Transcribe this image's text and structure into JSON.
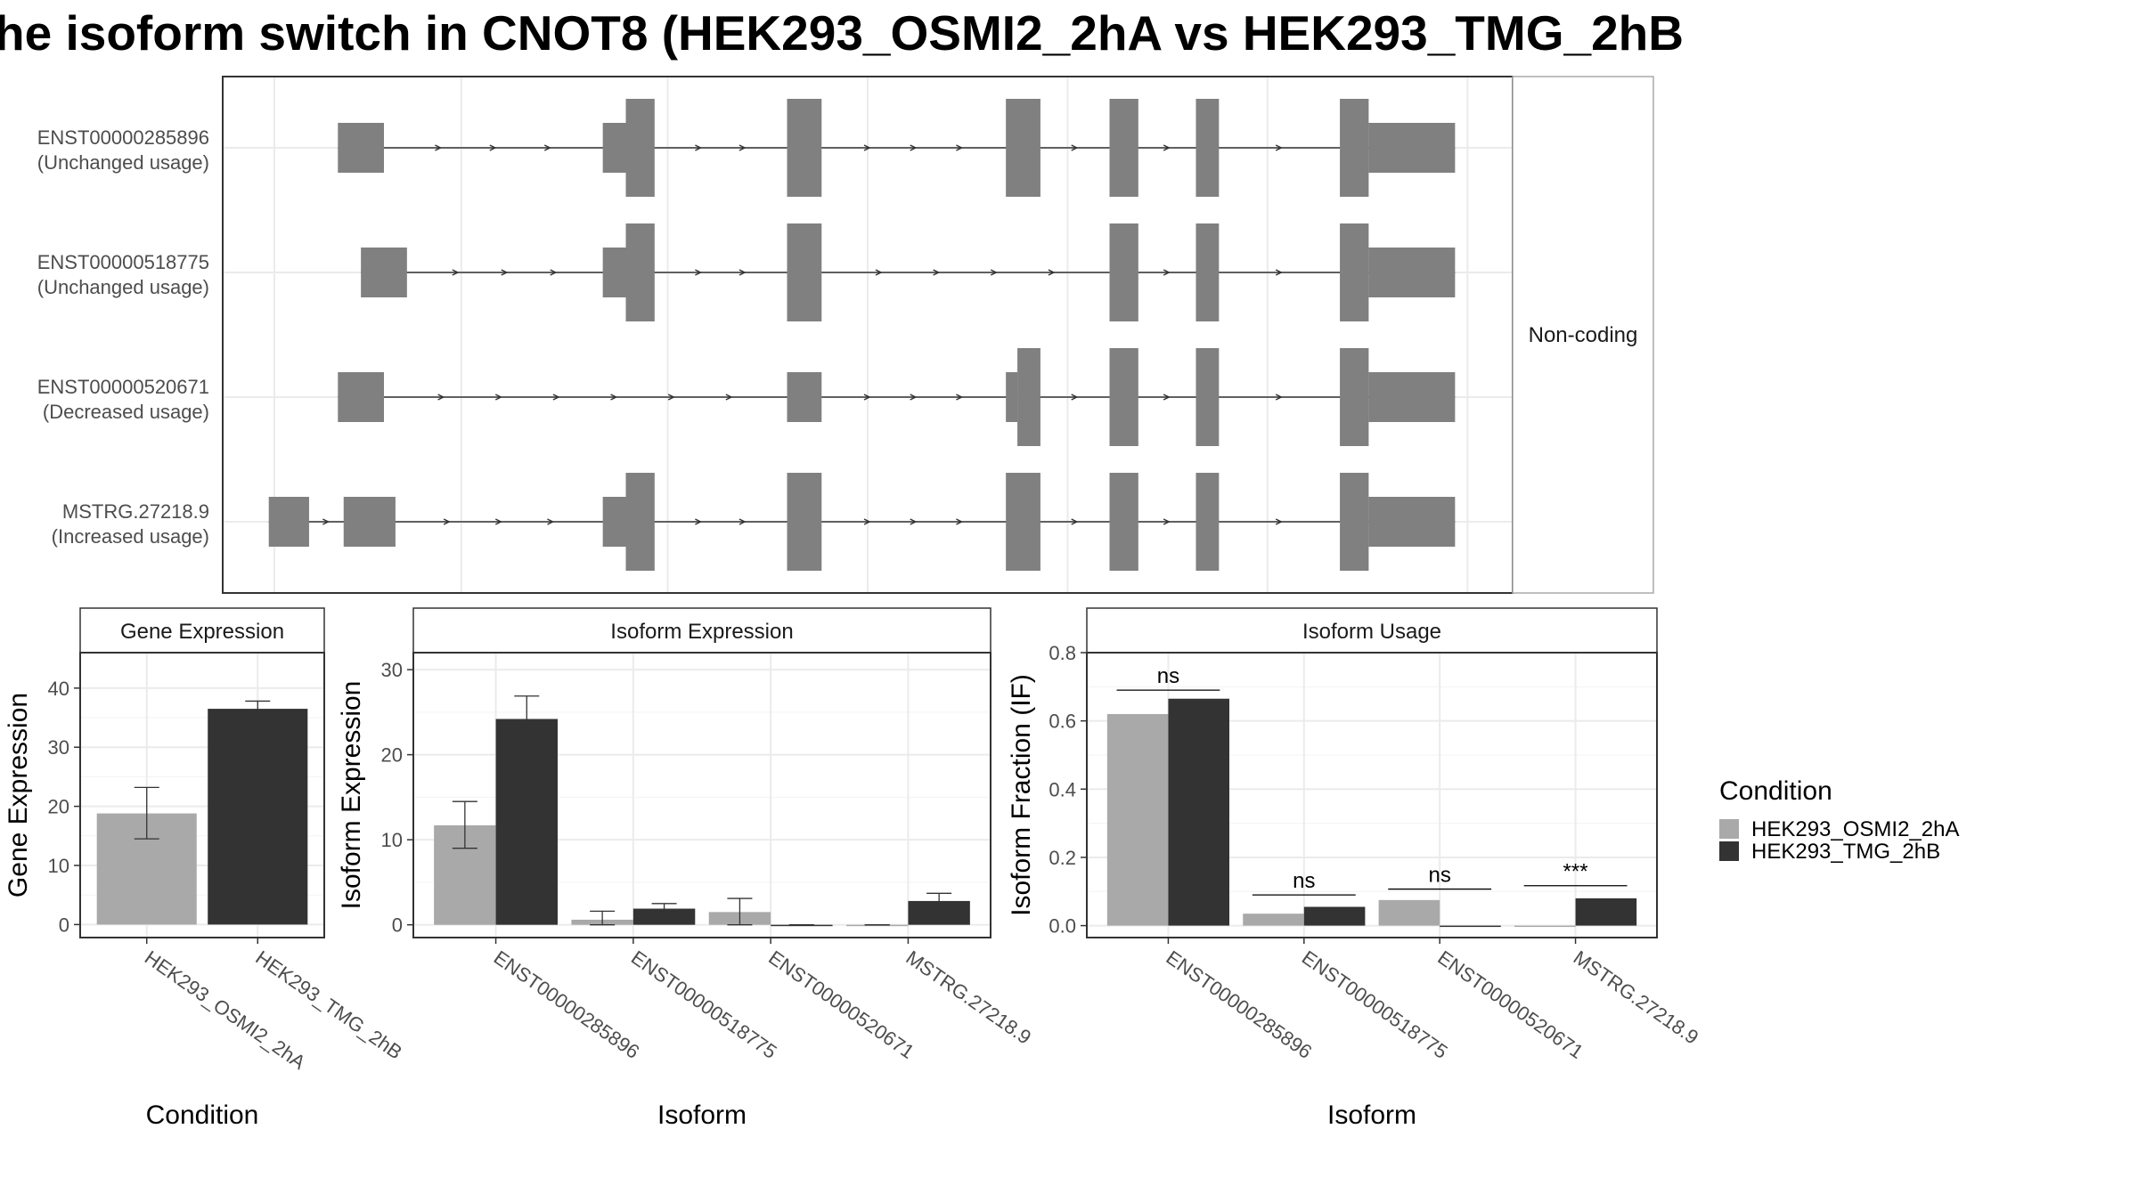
{
  "title": "he isoform switch in CNOT8 (HEK293_OSMI2_2hA vs HEK293_TMG_2hB",
  "colors": {
    "condition_a": "#a9a9a9",
    "condition_b": "#333333",
    "exon": "#808080",
    "grid": "#ebebeb",
    "panel_border": "#333333"
  },
  "structure_panel": {
    "facet_label": "Non-coding",
    "isoforms": [
      {
        "id": "ENST00000285896",
        "status": "(Unchanged usage)",
        "exons": [
          [
            0.1,
            0.14,
            "s"
          ],
          [
            0.33,
            0.35,
            "s"
          ],
          [
            0.35,
            0.375,
            "t"
          ],
          [
            0.49,
            0.52,
            "t"
          ],
          [
            0.68,
            0.71,
            "t"
          ],
          [
            0.77,
            0.795,
            "t"
          ],
          [
            0.845,
            0.865,
            "t"
          ],
          [
            0.97,
            0.995,
            "t"
          ],
          [
            0.995,
            1.07,
            "s"
          ]
        ]
      },
      {
        "id": "ENST00000518775",
        "status": "(Unchanged usage)",
        "exons": [
          [
            0.12,
            0.16,
            "s"
          ],
          [
            0.33,
            0.35,
            "s"
          ],
          [
            0.35,
            0.375,
            "t"
          ],
          [
            0.49,
            0.52,
            "t"
          ],
          [
            0.77,
            0.795,
            "t"
          ],
          [
            0.845,
            0.865,
            "t"
          ],
          [
            0.97,
            0.995,
            "t"
          ],
          [
            0.995,
            1.07,
            "s"
          ]
        ]
      },
      {
        "id": "ENST00000520671",
        "status": "(Decreased usage)",
        "exons": [
          [
            0.1,
            0.14,
            "s"
          ],
          [
            0.49,
            0.52,
            "s"
          ],
          [
            0.68,
            0.69,
            "s"
          ],
          [
            0.69,
            0.71,
            "t"
          ],
          [
            0.77,
            0.795,
            "t"
          ],
          [
            0.845,
            0.865,
            "t"
          ],
          [
            0.97,
            0.995,
            "t"
          ],
          [
            0.995,
            1.07,
            "s"
          ]
        ]
      },
      {
        "id": "MSTRG.27218.9",
        "status": "(Increased usage)",
        "exons": [
          [
            0.04,
            0.075,
            "s"
          ],
          [
            0.105,
            0.15,
            "s"
          ],
          [
            0.33,
            0.35,
            "s"
          ],
          [
            0.35,
            0.375,
            "t"
          ],
          [
            0.49,
            0.52,
            "t"
          ],
          [
            0.68,
            0.71,
            "t"
          ],
          [
            0.77,
            0.795,
            "t"
          ],
          [
            0.845,
            0.865,
            "t"
          ],
          [
            0.97,
            0.995,
            "t"
          ],
          [
            0.995,
            1.07,
            "s"
          ]
        ]
      }
    ]
  },
  "chart_data": [
    {
      "type": "bar",
      "strip_title": "Gene Expression",
      "xlabel": "Condition",
      "ylabel": "Gene Expression",
      "ylim": [
        -2.2,
        46
      ],
      "yticks": [
        0,
        10,
        20,
        30,
        40
      ],
      "categories": [
        "HEK293_OSMI2_2hA",
        "HEK293_TMG_2hB"
      ],
      "values": [
        18.8,
        36.5
      ],
      "error_low": [
        14.5,
        35.5
      ],
      "error_high": [
        23.2,
        37.8
      ]
    },
    {
      "type": "bar",
      "strip_title": "Isoform Expression",
      "xlabel": "Isoform",
      "ylabel": "Isoform Expression",
      "ylim": [
        -1.5,
        32
      ],
      "yticks": [
        0,
        10,
        20,
        30
      ],
      "categories": [
        "ENST00000285896",
        "ENST00000518775",
        "ENST00000520671",
        "MSTRG.27218.9"
      ],
      "series": [
        {
          "name": "HEK293_OSMI2_2hA",
          "values": [
            11.7,
            0.6,
            1.5,
            0.0
          ],
          "error_low": [
            9.0,
            0.0,
            0.0,
            0.0
          ],
          "error_high": [
            14.5,
            1.6,
            3.1,
            0.0
          ]
        },
        {
          "name": "HEK293_TMG_2hB",
          "values": [
            24.2,
            1.9,
            0.0,
            2.8
          ],
          "error_low": [
            21.6,
            1.5,
            0.0,
            2.0
          ],
          "error_high": [
            26.9,
            2.5,
            0.0,
            3.7
          ]
        }
      ]
    },
    {
      "type": "bar",
      "strip_title": "Isoform Usage",
      "xlabel": "Isoform",
      "ylabel": "Isoform Fraction (IF)",
      "ylim": [
        -0.035,
        0.8
      ],
      "yticks": [
        0.0,
        0.2,
        0.4,
        0.6,
        0.8
      ],
      "ytick_labels": [
        "0.0",
        "0.2",
        "0.4",
        "0.6",
        "0.8"
      ],
      "categories": [
        "ENST00000285896",
        "ENST00000518775",
        "ENST00000520671",
        "MSTRG.27218.9"
      ],
      "series": [
        {
          "name": "HEK293_OSMI2_2hA",
          "values": [
            0.62,
            0.035,
            0.075,
            0.0
          ]
        },
        {
          "name": "HEK293_TMG_2hB",
          "values": [
            0.665,
            0.055,
            0.0,
            0.08
          ]
        }
      ],
      "significance": [
        {
          "label": "ns",
          "y": 0.69
        },
        {
          "label": "ns",
          "y": 0.09
        },
        {
          "label": "ns",
          "y": 0.107
        },
        {
          "label": "***",
          "y": 0.117
        }
      ]
    }
  ],
  "legend": {
    "title": "Condition",
    "entries": [
      "HEK293_OSMI2_2hA",
      "HEK293_TMG_2hB"
    ]
  }
}
